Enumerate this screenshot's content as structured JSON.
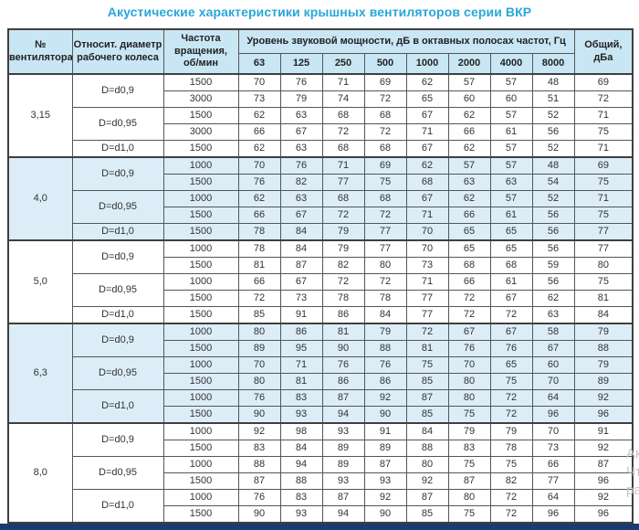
{
  "title": "Акустические характеристики крышных вентиляторов серии ВКР",
  "colors": {
    "title_accent": "#29a7da",
    "header_bg": "#c9e6f4",
    "band_bg": "#dcedf8",
    "border": "#565656",
    "bottom_bar": "#1b3a72"
  },
  "watermark": {
    "fragments": [
      "Ак",
      "Чт",
      "ра"
    ]
  },
  "table": {
    "headers": {
      "fan": "№\nвентилятора",
      "diameter": "Относит. диаметр\nрабочего колеса",
      "rpm": "Частота\nвращения,\nоб/мин",
      "levels_group": "Уровень звуковой мощности, дБ в октавных полосах частот, Гц",
      "total": "Общий,\nдБа"
    },
    "frequencies": [
      "63",
      "125",
      "250",
      "500",
      "1000",
      "2000",
      "4000",
      "8000"
    ],
    "groups": [
      {
        "fan": "3,15",
        "shade": "white",
        "subgroups": [
          {
            "diameter": "D=d0,9",
            "rows": [
              {
                "rpm": "1500",
                "levels": [
                  70,
                  76,
                  71,
                  69,
                  62,
                  57,
                  57,
                  48
                ],
                "total": 69
              },
              {
                "rpm": "3000",
                "levels": [
                  73,
                  79,
                  74,
                  72,
                  65,
                  60,
                  60,
                  51
                ],
                "total": 72
              }
            ]
          },
          {
            "diameter": "D=d0,95",
            "rows": [
              {
                "rpm": "1500",
                "levels": [
                  62,
                  63,
                  68,
                  68,
                  67,
                  62,
                  57,
                  52
                ],
                "total": 71
              },
              {
                "rpm": "3000",
                "levels": [
                  66,
                  67,
                  72,
                  72,
                  71,
                  66,
                  61,
                  56
                ],
                "total": 75
              }
            ]
          },
          {
            "diameter": "D=d1,0",
            "rows": [
              {
                "rpm": "1500",
                "levels": [
                  62,
                  63,
                  68,
                  68,
                  67,
                  62,
                  57,
                  52
                ],
                "total": 71
              }
            ]
          }
        ]
      },
      {
        "fan": "4,0",
        "shade": "blue",
        "subgroups": [
          {
            "diameter": "D=d0,9",
            "rows": [
              {
                "rpm": "1000",
                "levels": [
                  70,
                  76,
                  71,
                  69,
                  62,
                  57,
                  57,
                  48
                ],
                "total": 69
              },
              {
                "rpm": "1500",
                "levels": [
                  76,
                  82,
                  77,
                  75,
                  68,
                  63,
                  63,
                  54
                ],
                "total": 75
              }
            ]
          },
          {
            "diameter": "D=d0,95",
            "rows": [
              {
                "rpm": "1000",
                "levels": [
                  62,
                  63,
                  68,
                  68,
                  67,
                  62,
                  57,
                  52
                ],
                "total": 71
              },
              {
                "rpm": "1500",
                "levels": [
                  66,
                  67,
                  72,
                  72,
                  71,
                  66,
                  61,
                  56
                ],
                "total": 75
              }
            ]
          },
          {
            "diameter": "D=d1,0",
            "rows": [
              {
                "rpm": "1500",
                "levels": [
                  78,
                  84,
                  79,
                  77,
                  70,
                  65,
                  65,
                  56
                ],
                "total": 77
              }
            ]
          }
        ]
      },
      {
        "fan": "5,0",
        "shade": "white",
        "subgroups": [
          {
            "diameter": "D=d0,9",
            "rows": [
              {
                "rpm": "1000",
                "levels": [
                  78,
                  84,
                  79,
                  77,
                  70,
                  65,
                  65,
                  56
                ],
                "total": 77
              },
              {
                "rpm": "1500",
                "levels": [
                  81,
                  87,
                  82,
                  80,
                  73,
                  68,
                  68,
                  59
                ],
                "total": 80
              }
            ]
          },
          {
            "diameter": "D=d0,95",
            "rows": [
              {
                "rpm": "1000",
                "levels": [
                  66,
                  67,
                  72,
                  72,
                  71,
                  66,
                  61,
                  56
                ],
                "total": 75
              },
              {
                "rpm": "1500",
                "levels": [
                  72,
                  73,
                  78,
                  78,
                  77,
                  72,
                  67,
                  62
                ],
                "total": 81
              }
            ]
          },
          {
            "diameter": "D=d1,0",
            "rows": [
              {
                "rpm": "1500",
                "levels": [
                  85,
                  91,
                  86,
                  84,
                  77,
                  72,
                  72,
                  63
                ],
                "total": 84
              }
            ]
          }
        ]
      },
      {
        "fan": "6,3",
        "shade": "blue",
        "subgroups": [
          {
            "diameter": "D=d0,9",
            "rows": [
              {
                "rpm": "1000",
                "levels": [
                  80,
                  86,
                  81,
                  79,
                  72,
                  67,
                  67,
                  58
                ],
                "total": 79
              },
              {
                "rpm": "1500",
                "levels": [
                  89,
                  95,
                  90,
                  88,
                  81,
                  76,
                  76,
                  67
                ],
                "total": 88
              }
            ]
          },
          {
            "diameter": "D=d0,95",
            "rows": [
              {
                "rpm": "1000",
                "levels": [
                  70,
                  71,
                  76,
                  76,
                  75,
                  70,
                  65,
                  60
                ],
                "total": 79
              },
              {
                "rpm": "1500",
                "levels": [
                  80,
                  81,
                  86,
                  86,
                  85,
                  80,
                  75,
                  70
                ],
                "total": 89
              }
            ]
          },
          {
            "diameter": "D=d1,0",
            "rows": [
              {
                "rpm": "1000",
                "levels": [
                  76,
                  83,
                  87,
                  92,
                  87,
                  80,
                  72,
                  64
                ],
                "total": 92
              },
              {
                "rpm": "1500",
                "levels": [
                  90,
                  93,
                  94,
                  90,
                  85,
                  75,
                  72,
                  96
                ],
                "total": 96
              }
            ]
          }
        ]
      },
      {
        "fan": "8,0",
        "shade": "white",
        "subgroups": [
          {
            "diameter": "D=d0,9",
            "rows": [
              {
                "rpm": "1000",
                "levels": [
                  92,
                  98,
                  93,
                  91,
                  84,
                  79,
                  79,
                  70
                ],
                "total": 91
              },
              {
                "rpm": "1500",
                "levels": [
                  83,
                  84,
                  89,
                  89,
                  88,
                  83,
                  78,
                  73
                ],
                "total": 92
              }
            ]
          },
          {
            "diameter": "D=d0,95",
            "rows": [
              {
                "rpm": "1000",
                "levels": [
                  88,
                  94,
                  89,
                  87,
                  80,
                  75,
                  75,
                  66
                ],
                "total": 87
              },
              {
                "rpm": "1500",
                "levels": [
                  87,
                  88,
                  93,
                  93,
                  92,
                  87,
                  82,
                  77
                ],
                "total": 96
              }
            ]
          },
          {
            "diameter": "D=d1,0",
            "rows": [
              {
                "rpm": "1000",
                "levels": [
                  76,
                  83,
                  87,
                  92,
                  87,
                  80,
                  72,
                  64
                ],
                "total": 92
              },
              {
                "rpm": "1500",
                "levels": [
                  90,
                  93,
                  94,
                  90,
                  85,
                  75,
                  72,
                  96
                ],
                "total": 96
              }
            ]
          }
        ]
      }
    ]
  }
}
